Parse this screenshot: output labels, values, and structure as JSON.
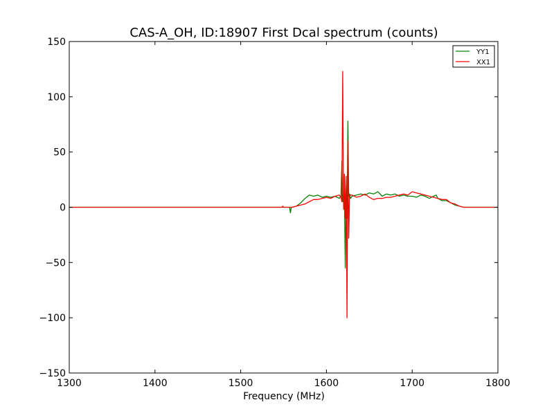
{
  "chart_data": {
    "type": "line",
    "title": "CAS-A_OH, ID:18907 First Dcal spectrum (counts)",
    "xlabel": "Frequency (MHz)",
    "ylabel": "",
    "xlim": [
      1300,
      1800
    ],
    "ylim": [
      -150,
      150
    ],
    "xticks": [
      1300,
      1400,
      1500,
      1600,
      1700,
      1800
    ],
    "yticks": [
      -150,
      -100,
      -50,
      0,
      50,
      100,
      150
    ],
    "xtick_labels": [
      "1300",
      "1400",
      "1500",
      "1600",
      "1700",
      "1800"
    ],
    "ytick_labels": [
      "−150",
      "−100",
      "−50",
      "0",
      "50",
      "100",
      "150"
    ],
    "grid": false,
    "legend_position": "top-right",
    "series": [
      {
        "name": "YY1",
        "color": "#008000",
        "x": [
          1300,
          1540,
          1555,
          1557,
          1558,
          1559,
          1560,
          1565,
          1570,
          1575,
          1580,
          1585,
          1590,
          1595,
          1600,
          1605,
          1610,
          1615,
          1617,
          1618,
          1619,
          1620,
          1621,
          1622,
          1623,
          1624,
          1625,
          1626,
          1627,
          1628,
          1630,
          1635,
          1640,
          1645,
          1650,
          1655,
          1660,
          1665,
          1670,
          1675,
          1680,
          1685,
          1690,
          1695,
          1700,
          1705,
          1710,
          1715,
          1720,
          1725,
          1728,
          1730,
          1735,
          1740,
          1745,
          1750,
          1755,
          1760,
          1765,
          1800
        ],
        "y": [
          0,
          0,
          0,
          0,
          -5,
          0,
          0,
          1,
          4,
          8,
          11,
          10,
          11,
          9,
          10,
          9,
          10,
          8,
          10,
          42,
          5,
          12,
          8,
          -55,
          20,
          -10,
          78,
          10,
          12,
          8,
          10,
          11,
          12,
          11,
          13,
          12,
          14,
          10,
          12,
          11,
          12,
          10,
          11,
          10,
          10,
          9,
          11,
          10,
          8,
          10,
          11,
          8,
          6,
          6,
          4,
          2,
          1,
          0,
          0,
          0
        ]
      },
      {
        "name": "XX1",
        "color": "#ff0000",
        "x": [
          1300,
          1540,
          1548,
          1549,
          1550,
          1555,
          1560,
          1565,
          1570,
          1575,
          1580,
          1585,
          1590,
          1595,
          1600,
          1605,
          1610,
          1615,
          1617,
          1618,
          1619,
          1620,
          1621,
          1622,
          1623,
          1624,
          1625,
          1626,
          1627,
          1628,
          1630,
          1635,
          1640,
          1645,
          1650,
          1655,
          1660,
          1665,
          1670,
          1675,
          1680,
          1685,
          1690,
          1695,
          1700,
          1705,
          1710,
          1715,
          1720,
          1725,
          1730,
          1735,
          1740,
          1745,
          1750,
          1755,
          1760,
          1765,
          1800
        ],
        "y": [
          0,
          0,
          0,
          1,
          0,
          0,
          0,
          1,
          2,
          3,
          5,
          7,
          7,
          8,
          9,
          8,
          10,
          11,
          9,
          5,
          123,
          -2,
          30,
          -10,
          28,
          -100,
          60,
          -28,
          10,
          11,
          11,
          9,
          10,
          12,
          9,
          7,
          8,
          8,
          9,
          9,
          10,
          11,
          12,
          11,
          14,
          13,
          12,
          11,
          10,
          9,
          8,
          7,
          7,
          4,
          3,
          1,
          0,
          0,
          0
        ]
      }
    ]
  }
}
